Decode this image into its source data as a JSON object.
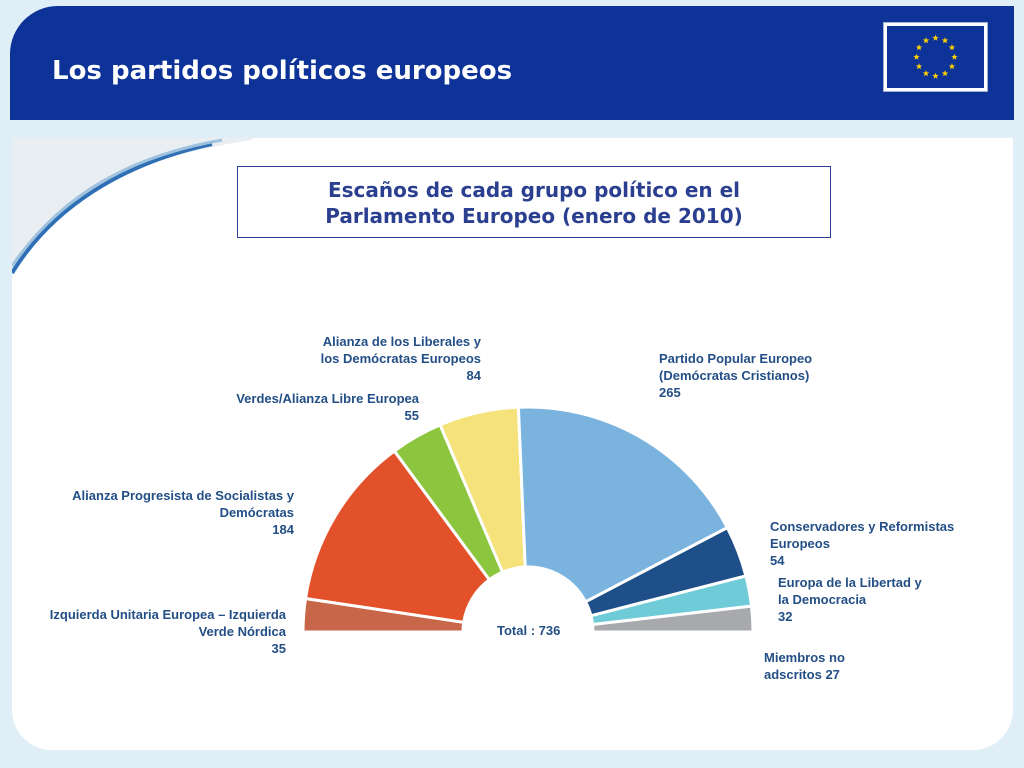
{
  "header": {
    "title": "Los partidos políticos europeos",
    "flag_icon": "eu-flag-icon"
  },
  "chart_data": {
    "type": "pie",
    "subtype": "half-donut (parliament hemicycle)",
    "title_lines": [
      "Escaños de cada grupo político en el",
      "Parlamento Europeo (enero de 2010)"
    ],
    "total_label": "Total : 736",
    "total": 736,
    "series": [
      {
        "name_lines": [
          "Izquierda Unitaria Europea – Izquierda",
          "Verde Nórdica"
        ],
        "value": 35,
        "color": "#c8664a"
      },
      {
        "name_lines": [
          "Alianza Progresista de Socialistas y",
          "Demócratas"
        ],
        "value": 184,
        "color": "#e2512a"
      },
      {
        "name_lines": [
          "Verdes/Alianza Libre Europea"
        ],
        "value": 55,
        "color": "#8cc63e"
      },
      {
        "name_lines": [
          "Alianza de los Liberales y",
          "los Demócratas Europeos"
        ],
        "value": 84,
        "color": "#f5e27a"
      },
      {
        "name_lines": [
          "Partido Popular Europeo",
          "(Demócratas Cristianos)"
        ],
        "value": 265,
        "color": "#7bb3df"
      },
      {
        "name_lines": [
          "Conservadores y Reformistas",
          "Europeos"
        ],
        "value": 54,
        "color": "#1e4f88"
      },
      {
        "name_lines": [
          "Europa de la Libertad y",
          "la Democracia"
        ],
        "value": 32,
        "color": "#6fcbd8"
      },
      {
        "name_lines": [
          "Miembros no",
          "adscritos"
        ],
        "value": 27,
        "color": "#a7a9ac"
      }
    ]
  },
  "colors": {
    "header_bg": "#0d3399",
    "title_text": "#2a3f8f",
    "label_text": "#234f86"
  }
}
